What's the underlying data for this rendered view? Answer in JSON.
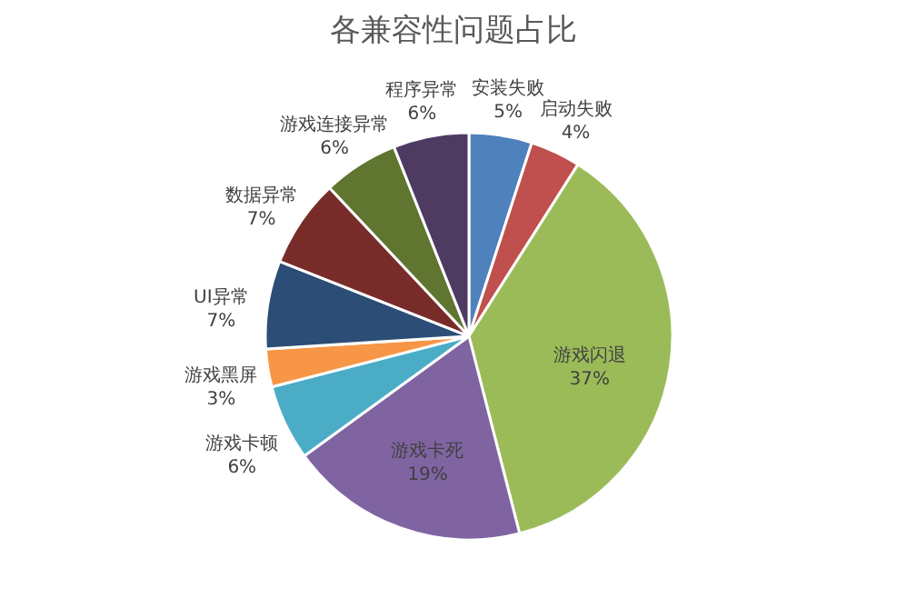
{
  "chart_data": {
    "type": "pie",
    "title": "各兼容性问题占比",
    "categories": [
      "安装失败",
      "启动失败",
      "游戏闪退",
      "游戏卡死",
      "游戏卡顿",
      "游戏黑屏",
      "UI异常",
      "数据异常",
      "游戏连接异常",
      "程序异常"
    ],
    "values": [
      5,
      4,
      37,
      19,
      6,
      3,
      7,
      7,
      6,
      6
    ],
    "value_labels": [
      "5%",
      "4%",
      "37%",
      "19%",
      "6%",
      "3%",
      "7%",
      "7%",
      "6%",
      "6%"
    ],
    "colors": [
      "#4f81bd",
      "#c0504d",
      "#9bbb59",
      "#8064a2",
      "#4bacc6",
      "#f79646",
      "#2c4d75",
      "#772c2a",
      "#5f7530",
      "#4d3b62"
    ],
    "legend": false
  }
}
